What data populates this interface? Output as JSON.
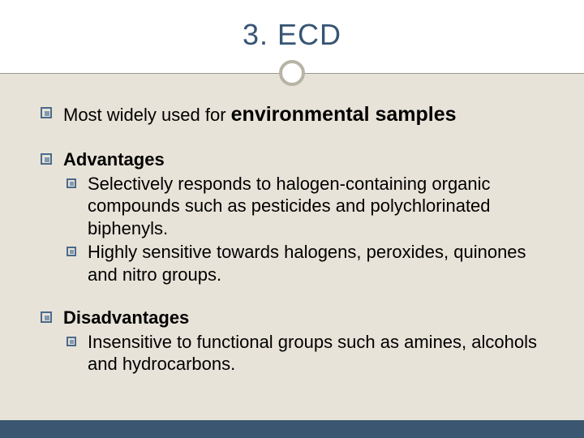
{
  "colors": {
    "page_bg": "#e8e3d8",
    "title_bg": "#ffffff",
    "title_color": "#385573",
    "rule_color": "#9a9a8a",
    "circle_border": "#b8b4a4",
    "bullet_border": "#4a6a8a",
    "bullet_shadow": "#8299b0",
    "bottom_bar": "#3a5670",
    "text_color": "#000000"
  },
  "title": "3. ECD",
  "items": [
    {
      "prefix": "Most widely used for ",
      "emphasis": "environmental samples",
      "sub": []
    },
    {
      "heading": "Advantages",
      "sub": [
        "Selectively responds to halogen-containing organic compounds such as pesticides and polychlorinated biphenyls.",
        "Highly sensitive towards halogens, peroxides, quinones and nitro groups."
      ]
    },
    {
      "heading": "Disadvantages",
      "sub": [
        "Insensitive to functional groups such as amines, alcohols and hydrocarbons."
      ]
    }
  ]
}
